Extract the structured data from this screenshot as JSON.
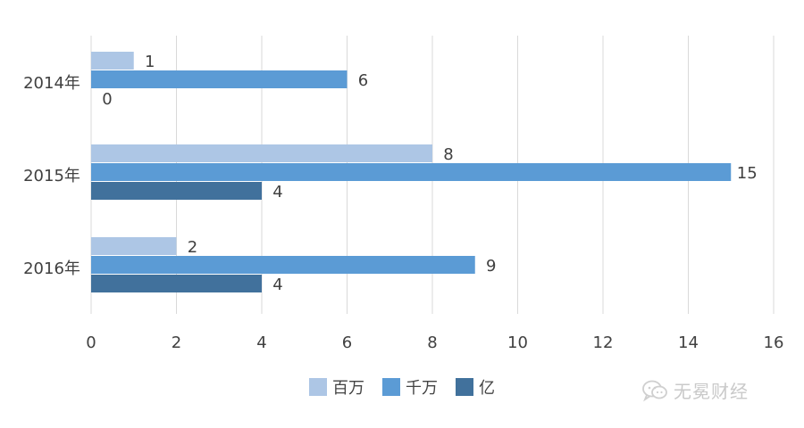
{
  "chart_data": {
    "type": "bar",
    "orientation": "horizontal",
    "categories": [
      "2014年",
      "2015年",
      "2016年"
    ],
    "series": [
      {
        "name": "百万",
        "values": [
          1,
          8,
          2
        ],
        "color": "#adc6e5"
      },
      {
        "name": "千万",
        "values": [
          6,
          15,
          9
        ],
        "color": "#5b9bd5"
      },
      {
        "name": "亿",
        "values": [
          0,
          4,
          4
        ],
        "color": "#41719c"
      }
    ],
    "xlim": [
      0,
      16
    ],
    "xticks": [
      0,
      2,
      4,
      6,
      8,
      10,
      12,
      14,
      16
    ],
    "grid": true,
    "legend_position": "bottom",
    "data_labels": true
  },
  "watermark": {
    "text": "无冕财经",
    "icon": "wechat-icon"
  },
  "colors": {
    "grid": "#d9d9d9",
    "label": "#404040"
  }
}
